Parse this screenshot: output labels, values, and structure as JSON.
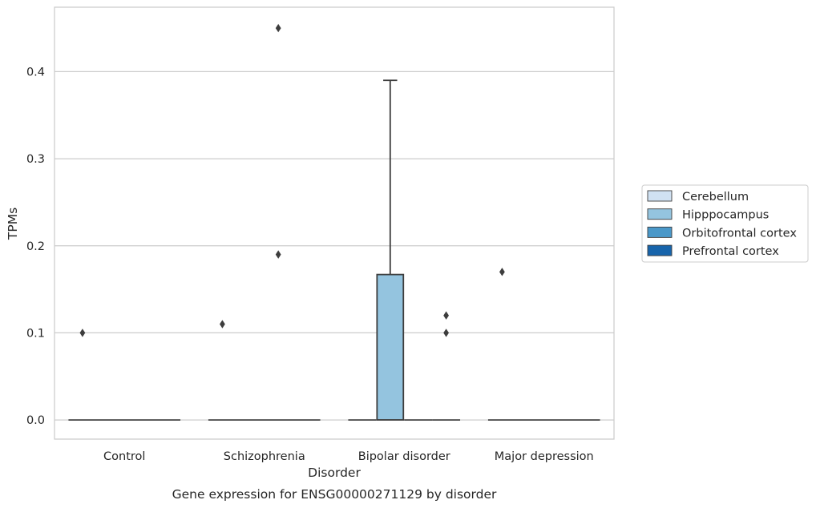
{
  "chart_data": {
    "type": "box",
    "caption": "Gene expression for ENSG00000271129 by disorder",
    "xlabel": "Disorder",
    "ylabel": "TPMs",
    "ylim": [
      -0.022,
      0.474
    ],
    "yticks": [
      0.0,
      0.1,
      0.2,
      0.3,
      0.4
    ],
    "ytick_labels": [
      "0.0",
      "0.1",
      "0.2",
      "0.3",
      "0.4"
    ],
    "grid": true,
    "legend_position": "right",
    "categories": [
      "Control",
      "Schizophrenia",
      "Bipolar disorder",
      "Major depression"
    ],
    "series": [
      {
        "name": "Cerebellum",
        "color": "#d0e1f2"
      },
      {
        "name": "Hipppocampus",
        "color": "#94c4df"
      },
      {
        "name": "Orbitofrontal cortex",
        "color": "#4a98c9"
      },
      {
        "name": "Prefrontal cortex",
        "color": "#1764ab"
      }
    ],
    "boxes": [
      {
        "category": 0,
        "q1": 0.0,
        "median": 0.0,
        "q3": 0.0,
        "whisker_low": 0.0,
        "whisker_high": 0.0,
        "outliers": [
          0.1
        ]
      },
      {
        "category": 1,
        "q1": 0.0,
        "median": 0.0,
        "q3": 0.0,
        "whisker_low": 0.0,
        "whisker_high": 0.0,
        "outliers": [
          0.45,
          0.11,
          0.19
        ]
      },
      {
        "category": 2,
        "q1": 0.0,
        "median": 0.0,
        "q3": 0.167,
        "whisker_low": 0.0,
        "whisker_high": 0.39,
        "outliers": [
          0.12,
          0.1
        ]
      },
      {
        "category": 3,
        "q1": 0.0,
        "median": 0.0,
        "q3": 0.0,
        "whisker_low": 0.0,
        "whisker_high": 0.0,
        "outliers": [
          0.17
        ]
      }
    ]
  }
}
